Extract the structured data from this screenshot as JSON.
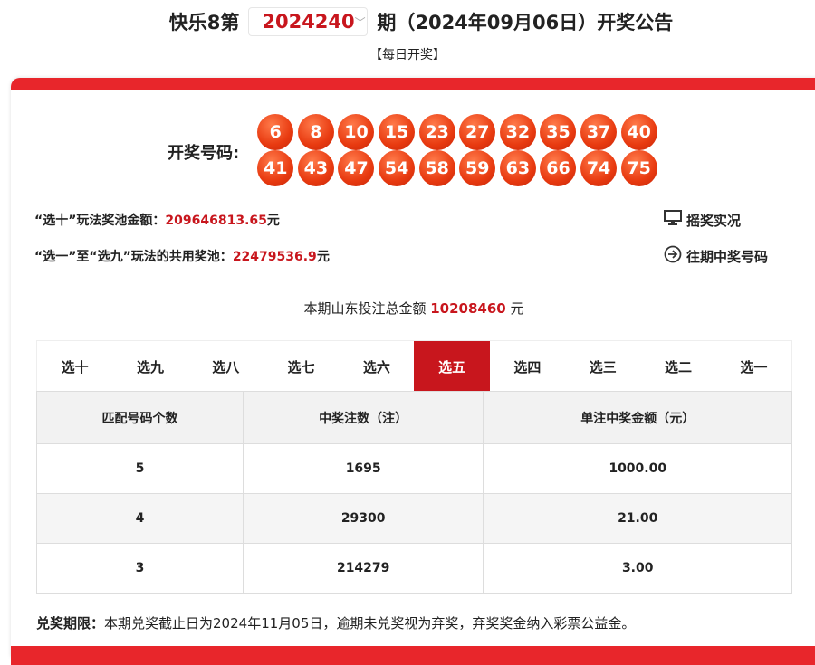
{
  "header": {
    "prefix": "快乐8第",
    "issue": "2024240",
    "suffix": "期（2024年09月06日）开奖公告",
    "subtitle": "【每日开奖】"
  },
  "draw": {
    "label": "开奖号码:",
    "numbers": [
      "6",
      "8",
      "10",
      "15",
      "23",
      "27",
      "32",
      "35",
      "37",
      "40",
      "41",
      "43",
      "47",
      "54",
      "58",
      "59",
      "63",
      "66",
      "74",
      "75"
    ]
  },
  "pools": {
    "pick10_label": "“选十”玩法奖池金额：",
    "pick10_value": "209646813.65",
    "pick1_9_label": "“选一”至“选九”玩法的共用奖池：",
    "pick1_9_value": "22479536.9",
    "unit": "元"
  },
  "links": {
    "live": "摇奖实况",
    "history": "往期中奖号码"
  },
  "total": {
    "label": "本期山东投注总金额",
    "value": "10208460",
    "unit": "元"
  },
  "tabs": [
    "选十",
    "选九",
    "选八",
    "选七",
    "选六",
    "选五",
    "选四",
    "选三",
    "选二",
    "选一"
  ],
  "active_tab": "选五",
  "table": {
    "headers": [
      "匹配号码个数",
      "中奖注数（注）",
      "单注中奖金额（元）"
    ],
    "rows": [
      [
        "5",
        "1695",
        "1000.00"
      ],
      [
        "4",
        "29300",
        "21.00"
      ],
      [
        "3",
        "214279",
        "3.00"
      ]
    ]
  },
  "footer": {
    "label": "兑奖期限：",
    "text": "本期兑奖截止日为2024年11月05日，逾期未兑奖视为弃奖，弃奖奖金纳入彩票公益金。"
  },
  "colors": {
    "accent": "#e8262b",
    "text_red": "#c8161d"
  }
}
